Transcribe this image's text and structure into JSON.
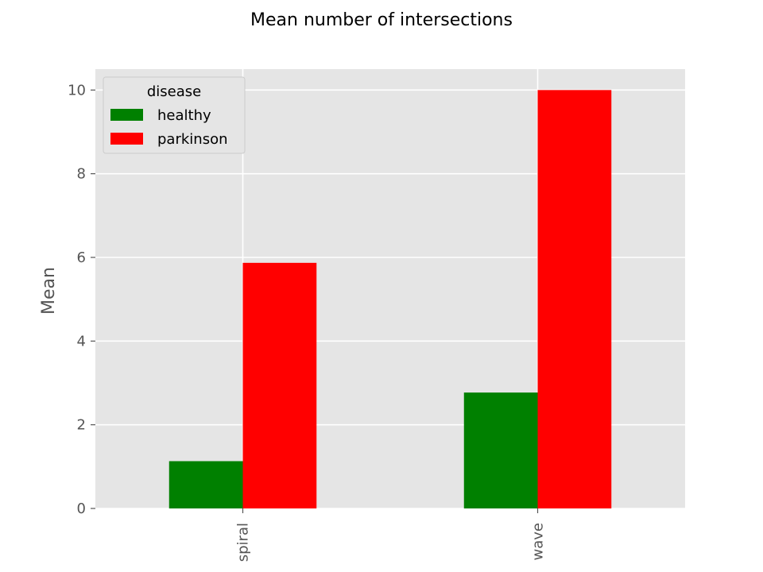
{
  "chart_data": {
    "type": "bar",
    "title": "Mean number of intersections",
    "xlabel": "",
    "ylabel": "Mean",
    "categories": [
      "spiral",
      "wave"
    ],
    "series": [
      {
        "name": "healthy",
        "color": "#008000",
        "values": [
          1.13,
          2.77
        ]
      },
      {
        "name": "parkinson",
        "color": "#ff0000",
        "values": [
          5.87,
          10.0
        ]
      }
    ],
    "ylim": [
      0,
      10.5
    ],
    "yticks": [
      0,
      2,
      4,
      6,
      8,
      10
    ],
    "grid": true,
    "legend": {
      "title": "disease",
      "placement": "top-left"
    },
    "style": {
      "plot_background": "#e5e5e5",
      "grid_color": "#ffffff",
      "tick_color": "#555555"
    }
  }
}
